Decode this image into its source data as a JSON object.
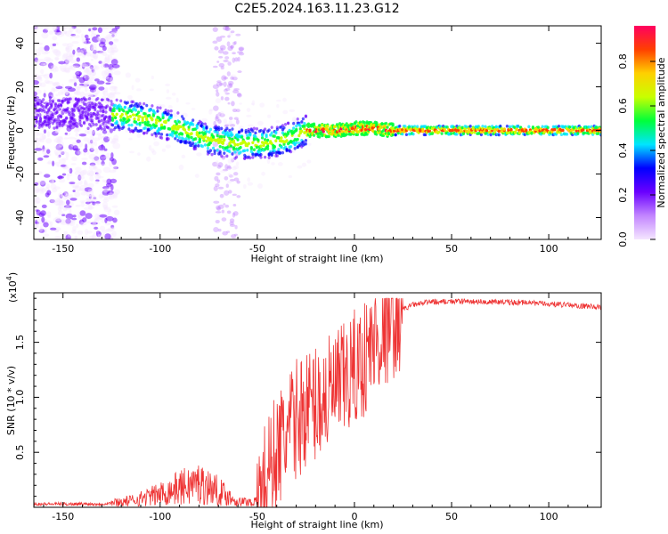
{
  "title": "C2E5.2024.163.11.23.G12",
  "chart_data": [
    {
      "type": "heatmap",
      "title": "",
      "xlabel": "Height of straight line (km)",
      "ylabel": "Frequency (Hz)",
      "xlim": [
        -165,
        127
      ],
      "ylim": [
        -50,
        48
      ],
      "xticks": [
        -150,
        -100,
        -50,
        0,
        50,
        100
      ],
      "yticks": [
        -40,
        -20,
        0,
        20,
        40
      ],
      "colorbar": {
        "label": "Normalized spectral amplitude",
        "range": [
          0,
          0.96
        ],
        "ticks": [
          "0.0",
          "0.2",
          "0.4",
          "0.6",
          "0.8"
        ],
        "tick_values": [
          0,
          0.2,
          0.4,
          0.6,
          0.8
        ],
        "colormap": [
          "#f5e6ff",
          "#c285ff",
          "#6a00ff",
          "#0000ff",
          "#00e5ff",
          "#00ff3a",
          "#c8ff00",
          "#ffd000",
          "#ff4000",
          "#ff0060"
        ]
      },
      "ridge": {
        "x": [
          -162,
          -140,
          -120,
          -105,
          -90,
          -75,
          -60,
          -45,
          -35,
          -25,
          -10,
          0,
          10,
          20,
          40,
          80,
          127
        ],
        "y": [
          8,
          8,
          7,
          5,
          1,
          -4,
          -6,
          -6,
          -4,
          0,
          0,
          1,
          1,
          0,
          0,
          0,
          0
        ]
      },
      "grid": false
    },
    {
      "type": "line",
      "title": "",
      "xlabel": "Height of straight line (km)",
      "ylabel": "SNR (10 * v/v)",
      "yscale_label": "(x10",
      "yscale_exp": "4",
      "yscale_close": ")",
      "xlim": [
        -165,
        127
      ],
      "ylim": [
        0,
        1.95
      ],
      "xticks": [
        -150,
        -100,
        -50,
        0,
        50,
        100
      ],
      "yticks": [
        "0.5",
        "1.0",
        "1.5"
      ],
      "ytick_values": [
        0.5,
        1.0,
        1.5
      ],
      "color": "#ee3333",
      "envelope": {
        "x": [
          -165,
          -130,
          -115,
          -100,
          -90,
          -80,
          -70,
          -60,
          -50,
          -45,
          -40,
          -35,
          -30,
          -25,
          -20,
          -15,
          -10,
          -5,
          0,
          5,
          10,
          15,
          20,
          25,
          30,
          40,
          60,
          90,
          127
        ],
        "y": [
          0.03,
          0.03,
          0.06,
          0.12,
          0.18,
          0.22,
          0.15,
          0.05,
          0.05,
          0.3,
          0.5,
          0.65,
          0.8,
          0.9,
          0.95,
          1.0,
          1.05,
          1.15,
          1.25,
          1.35,
          1.5,
          1.62,
          1.72,
          1.8,
          1.84,
          1.87,
          1.87,
          1.86,
          1.82
        ]
      },
      "grid": false
    }
  ]
}
